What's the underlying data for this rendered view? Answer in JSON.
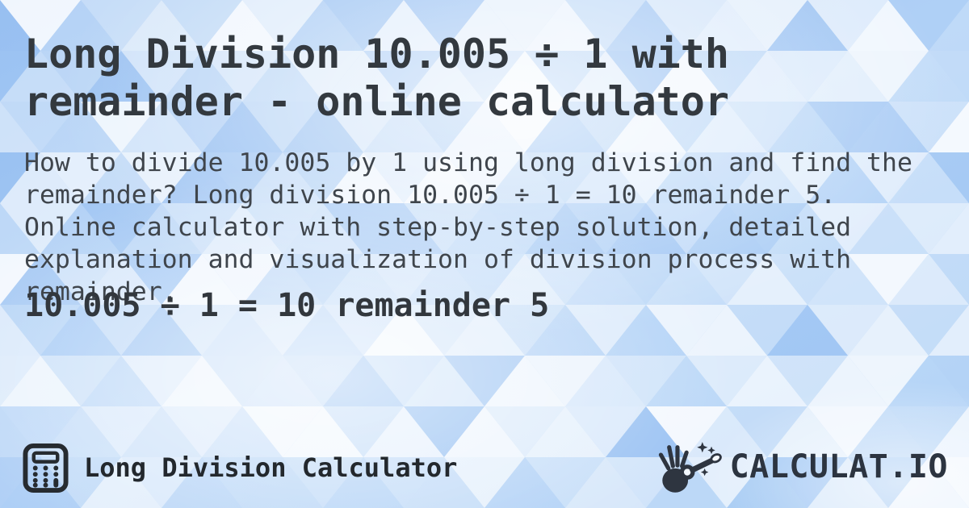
{
  "header": {
    "title": "Long Division 10.005 ÷ 1 with remainder - online calculator"
  },
  "body": {
    "description": "How to divide 10.005 by 1 using long division and find the remainder? Long division 10.005 ÷ 1 = 10 remainder 5. Online calculator with step-by-step solution, detailed explanation and visualization of division process with remainder.",
    "result": "10.005 ÷ 1 = 10 remainder 5"
  },
  "footer": {
    "app_name": "Long Division Calculator",
    "brand": "CALCULAT.IO"
  },
  "icons": {
    "app_icon": "calculator-icon",
    "brand_icon": "magic-wand-hand-icon"
  },
  "colors": {
    "background_base_light": "#bcd8f8",
    "background_base_dark": "#9fc5f2",
    "mosaic_deep_blue": "#6fa6ec",
    "title_text": "#33393f",
    "body_text": "#3f454c",
    "result_text": "#32373d",
    "footer_text": "#23282d",
    "brand_text": "#2c3440"
  }
}
